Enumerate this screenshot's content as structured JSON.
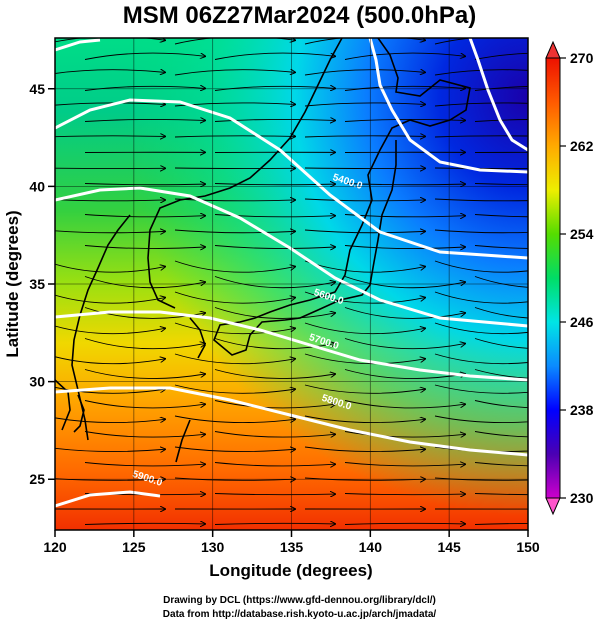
{
  "title": "MSM 06Z27Mar2024 (500.0hPa)",
  "x_axis": {
    "label": "Longitude (degrees)",
    "range": [
      120,
      150
    ],
    "ticks": [
      "120",
      "125",
      "130",
      "135",
      "140",
      "145",
      "150"
    ]
  },
  "y_axis": {
    "label": "Latitude  (degrees)",
    "range": [
      22.4,
      47.6
    ],
    "ticks": [
      "25",
      "30",
      "35",
      "40",
      "45"
    ]
  },
  "colorbar": {
    "range": [
      230,
      270
    ],
    "ticks": [
      "230",
      "238",
      "246",
      "254",
      "262",
      "270"
    ],
    "colors": [
      "#cc00cc",
      "#4b00b3",
      "#0000ff",
      "#0b8bff",
      "#00e5e5",
      "#00dd66",
      "#55dd00",
      "#eeee00",
      "#ffaa00",
      "#ff5a00",
      "#ee1100"
    ]
  },
  "contours": [
    {
      "label": "5400.0",
      "lon": 138.5,
      "lat": 40.1
    },
    {
      "label": "5600.0",
      "lon": 137.3,
      "lat": 34.2
    },
    {
      "label": "5700.0",
      "lon": 137.0,
      "lat": 31.9
    },
    {
      "label": "5800.0",
      "lon": 137.8,
      "lat": 28.8
    },
    {
      "label": "5900.0",
      "lon": 125.8,
      "lat": 24.9
    }
  ],
  "credits": {
    "line1": "Drawing by DCL (https://www.gfd-dennou.org/library/dcl/)",
    "line2": "Data from http://database.rish.kyoto-u.ac.jp/arch/jmadata/"
  }
}
